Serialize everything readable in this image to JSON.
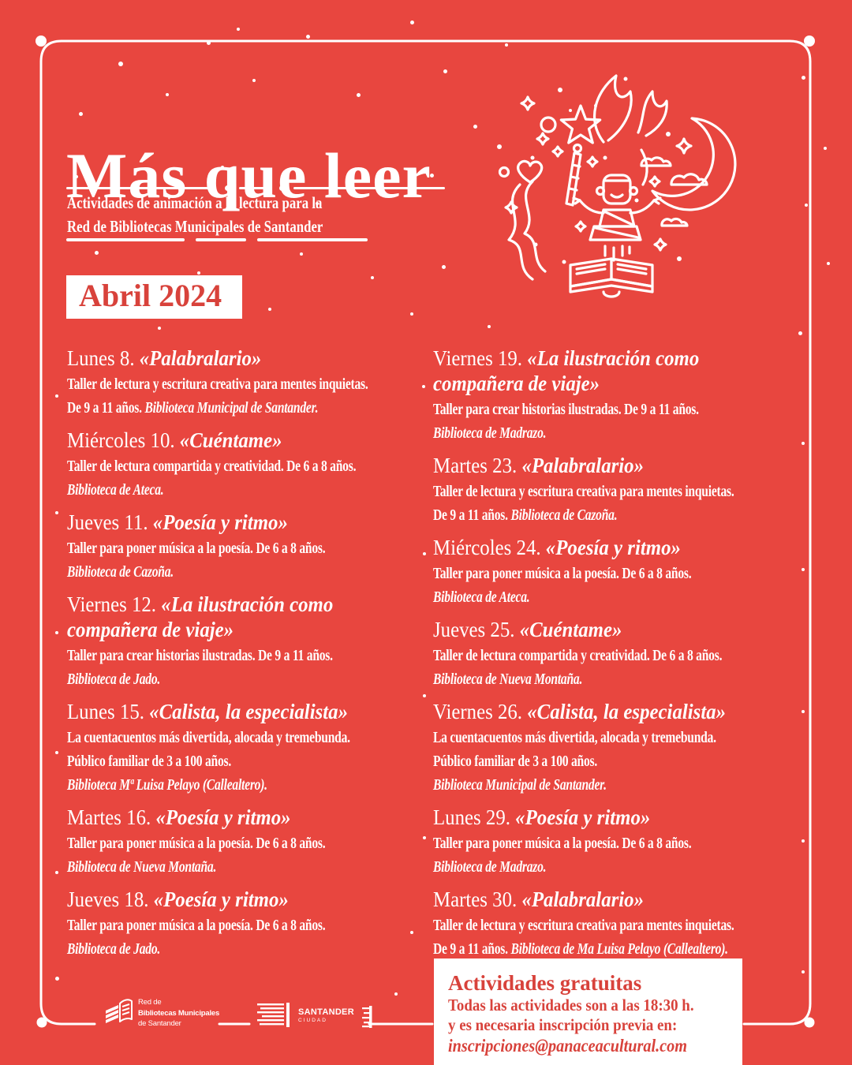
{
  "poster": {
    "title": "Más que leer",
    "subtitle_lines": [
      "Actividades de animación a la lectura para la",
      "Red de Bibliotecas Municipales de Santander"
    ],
    "month_badge": "Abril 2024"
  },
  "schedule": {
    "left": [
      {
        "day": "Lunes 8.",
        "title_lines": [
          "«Palabralario»"
        ],
        "body_lines": [
          [
            {
              "text": "Taller de lectura y escritura creativa para mentes inquietas.",
              "italic": false
            }
          ],
          [
            {
              "text": "De 9 a 11 años. ",
              "italic": false
            },
            {
              "text": "Biblioteca Municipal de Santander.",
              "italic": true
            }
          ]
        ]
      },
      {
        "day": "Miércoles 10.",
        "title_lines": [
          "«Cuéntame»"
        ],
        "body_lines": [
          [
            {
              "text": "Taller de lectura compartida y creatividad. De 6 a 8 años.",
              "italic": false
            }
          ],
          [
            {
              "text": "Biblioteca de Ateca.",
              "italic": true
            }
          ]
        ]
      },
      {
        "day": "Jueves 11.",
        "title_lines": [
          "«Poesía y ritmo»"
        ],
        "body_lines": [
          [
            {
              "text": "Taller para poner música a la poesía. De 6 a 8 años.",
              "italic": false
            }
          ],
          [
            {
              "text": "Biblioteca de Cazoña.",
              "italic": true
            }
          ]
        ]
      },
      {
        "day": "Viernes 12.",
        "title_lines": [
          "«La ilustración como",
          "compañera de viaje»"
        ],
        "body_lines": [
          [
            {
              "text": "Taller para crear historias ilustradas. De 9 a 11 años.",
              "italic": false
            }
          ],
          [
            {
              "text": "Biblioteca de Jado.",
              "italic": true
            }
          ]
        ]
      },
      {
        "day": "Lunes 15.",
        "title_lines": [
          "«Calista, la especialista»"
        ],
        "body_lines": [
          [
            {
              "text": "La cuentacuentos más divertida, alocada y tremebunda.",
              "italic": false
            }
          ],
          [
            {
              "text": "Público familiar de 3 a 100 años.",
              "italic": false
            }
          ],
          [
            {
              "text": "Biblioteca Mª Luisa Pelayo (Callealtero).",
              "italic": true
            }
          ]
        ]
      },
      {
        "day": "Martes 16.",
        "title_lines": [
          "«Poesía y ritmo»"
        ],
        "body_lines": [
          [
            {
              "text": "Taller para poner música a la poesía. De 6 a 8 años.",
              "italic": false
            }
          ],
          [
            {
              "text": "Biblioteca de Nueva Montaña.",
              "italic": true
            }
          ]
        ]
      },
      {
        "day": "Jueves 18.",
        "title_lines": [
          "«Poesía y ritmo»"
        ],
        "body_lines": [
          [
            {
              "text": "Taller para poner música a la poesía. De 6 a 8 años.",
              "italic": false
            }
          ],
          [
            {
              "text": "Biblioteca de Jado.",
              "italic": true
            }
          ]
        ]
      }
    ],
    "right": [
      {
        "day": "Viernes 19.",
        "title_lines": [
          "«La ilustración como",
          "compañera de viaje»"
        ],
        "body_lines": [
          [
            {
              "text": "Taller para crear historias ilustradas. De 9 a 11 años.",
              "italic": false
            }
          ],
          [
            {
              "text": "Biblioteca de Madrazo.",
              "italic": true
            }
          ]
        ]
      },
      {
        "day": "Martes 23.",
        "title_lines": [
          "«Palabralario»"
        ],
        "body_lines": [
          [
            {
              "text": "Taller de lectura y escritura creativa para mentes inquietas.",
              "italic": false
            }
          ],
          [
            {
              "text": "De 9 a 11 años. ",
              "italic": false
            },
            {
              "text": "Biblioteca de Cazoña.",
              "italic": true
            }
          ]
        ]
      },
      {
        "day": "Miércoles 24.",
        "title_lines": [
          "«Poesía y ritmo»"
        ],
        "body_lines": [
          [
            {
              "text": "Taller para poner música a la poesía. De 6 a 8 años.",
              "italic": false
            }
          ],
          [
            {
              "text": "Biblioteca de Ateca.",
              "italic": true
            }
          ]
        ]
      },
      {
        "day": "Jueves 25.",
        "title_lines": [
          "«Cuéntame»"
        ],
        "body_lines": [
          [
            {
              "text": "Taller de lectura compartida y creatividad. De 6 a 8 años.",
              "italic": false
            }
          ],
          [
            {
              "text": "Biblioteca de Nueva Montaña.",
              "italic": true
            }
          ]
        ]
      },
      {
        "day": "Viernes 26.",
        "title_lines": [
          "«Calista, la especialista»"
        ],
        "body_lines": [
          [
            {
              "text": "La cuentacuentos más divertida, alocada y tremebunda.",
              "italic": false
            }
          ],
          [
            {
              "text": "Público familiar de 3 a 100 años.",
              "italic": false
            }
          ],
          [
            {
              "text": "Biblioteca Municipal de Santander.",
              "italic": true
            }
          ]
        ]
      },
      {
        "day": "Lunes 29.",
        "title_lines": [
          "«Poesía y ritmo»"
        ],
        "body_lines": [
          [
            {
              "text": "Taller para poner música a la poesía. De 6 a 8 años.",
              "italic": false
            }
          ],
          [
            {
              "text": "Biblioteca de Madrazo.",
              "italic": true
            }
          ]
        ]
      },
      {
        "day": "Martes 30.",
        "title_lines": [
          "«Palabralario»"
        ],
        "body_lines": [
          [
            {
              "text": "Taller de lectura y escritura creativa para mentes inquietas.",
              "italic": false
            }
          ],
          [
            {
              "text": "De 9 a 11 años. ",
              "italic": false
            },
            {
              "text": "Biblioteca de Ma Luisa Pelayo (Callealtero).",
              "italic": true
            }
          ]
        ]
      }
    ]
  },
  "footer": {
    "library_network_logo": {
      "lines": [
        "Red de",
        "Bibliotecas Municipales",
        "de Santander"
      ]
    },
    "city_logo": {
      "name": "SANTANDER",
      "subtitle": "CIUDAD"
    },
    "info_box": {
      "title": "Actividades gratuitas",
      "lines": [
        "Todas las actividades son a las 18:30 h.",
        "y es necesaria inscripción previa en:"
      ],
      "email": "inscripciones@panaceacultural.com"
    }
  },
  "colors": {
    "background": "#e8463f",
    "accent_red": "#d8423b",
    "foreground": "#ffffff"
  }
}
